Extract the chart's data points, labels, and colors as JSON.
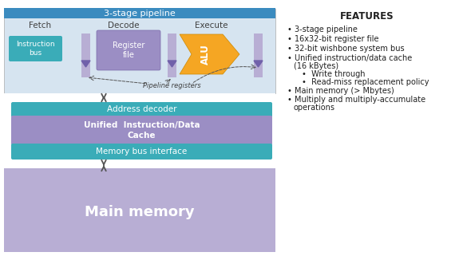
{
  "bg_color": "#ffffff",
  "pipeline_bar_color": "#3b8bbf",
  "pipeline_bar_text": "3-stage pipeline",
  "pipeline_bar_text_color": "#ffffff",
  "core_bg_color": "#d6e4f0",
  "stage_label_color": "#404040",
  "instr_bus_color": "#3aacb8",
  "instr_bus_text": "Instruction\nbus",
  "instr_bus_text_color": "#ffffff",
  "reg_file_color": "#9b8ec4",
  "reg_file_text": "Register\nfile",
  "reg_file_text_color": "#ffffff",
  "alu_color": "#f5a623",
  "alu_text": "ALU",
  "alu_text_color": "#ffffff",
  "pipeline_reg_color": "#b8aed4",
  "addr_decoder_color": "#3aacb8",
  "addr_decoder_text": "Address decoder",
  "addr_decoder_text_color": "#ffffff",
  "cache_color": "#9b8ec4",
  "cache_text": "Unified  Instruction/Data\nCache",
  "cache_text_color": "#ffffff",
  "mem_bus_color": "#3aacb8",
  "mem_bus_text": "Memory bus interface",
  "mem_bus_text_color": "#ffffff",
  "main_mem_color": "#b8aed4",
  "main_mem_text": "Main memory",
  "main_mem_text_color": "#ffffff",
  "pipeline_reg_label": "Pipeline registers",
  "features_title": "FEATURES",
  "arrow_color": "#555555"
}
